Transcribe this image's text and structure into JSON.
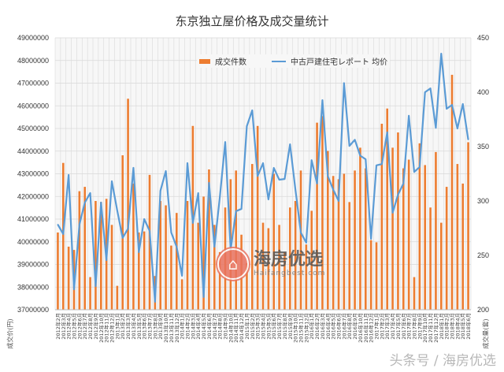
{
  "watermark": {
    "logo_name": "海房优选",
    "logo_url": "Haifangbest.com",
    "footer": "头条号 / 海房优选"
  },
  "colors": {
    "bars": "#ed7d31",
    "line": "#5b9bd5",
    "grid": "#d9d9d9"
  },
  "chart_data": {
    "type": "bar+line",
    "title": "东京独立屋价格及成交量统计",
    "ylabel_left": "成交价(円)",
    "ylabel_right": "成交量(套)",
    "ylim_left": [
      37000000,
      49000000
    ],
    "yticks_left": [
      "49000000",
      "48000000",
      "47000000",
      "46000000",
      "45000000",
      "44000000",
      "43000000",
      "42000000",
      "41000000",
      "40000000",
      "39000000",
      "38000000",
      "37000000"
    ],
    "ylim_right": [
      200,
      450
    ],
    "yticks_right": [
      "450",
      "400",
      "350",
      "300",
      "250",
      "200"
    ],
    "grid": true,
    "legend": "top-center",
    "categories": [
      "2012年2月",
      "2012年3月",
      "2012年4月",
      "2012年5月",
      "2012年6月",
      "2012年7月",
      "2012年8月",
      "2012年9月",
      "2012年10月",
      "2012年11月",
      "2012年12月",
      "2013年1月",
      "2013年2月",
      "2013年3月",
      "2013年4月",
      "2013年5月",
      "2013年6月",
      "2013年7月",
      "2013年8月",
      "2013年9月",
      "2013年10月",
      "2013年11月",
      "2013年12月",
      "2014年1月",
      "2014年2月",
      "2014年3月",
      "2014年4月",
      "2014年5月",
      "2014年6月",
      "2014年7月",
      "2014年8月",
      "2014年9月",
      "2014年10月",
      "2014年11月",
      "2014年12月",
      "2015年1月",
      "2015年2月",
      "2015年3月",
      "2015年4月",
      "2015年5月",
      "2015年6月",
      "2015年7月",
      "2015年8月",
      "2015年9月",
      "2015年10月",
      "2015年11月",
      "2015年12月",
      "2016年1月",
      "2016年2月",
      "2016年3月",
      "2016年4月",
      "2016年5月",
      "2016年6月",
      "2016年7月",
      "2016年8月",
      "2016年9月",
      "2016年10月",
      "2016年11月",
      "2016年12月",
      "2017年1月",
      "2017年2月",
      "2017年3月",
      "2017年4月",
      "2017年5月",
      "2017年6月",
      "2017年7月",
      "2017年8月",
      "2017年9月",
      "2017年10月",
      "2017年11月",
      "2017年12月",
      "2018年1月",
      "2018年2月",
      "2018年3月",
      "2018年4月",
      "2018年5月",
      "2018年6月"
    ],
    "series": [
      {
        "name": "成交件数",
        "type": "bar",
        "axis": "right",
        "values": [
          271,
          335,
          258,
          255,
          309,
          313,
          230,
          300,
          299,
          302,
          278,
          222,
          342,
          394,
          316,
          271,
          272,
          324,
          231,
          300,
          296,
          259,
          289,
          228,
          300,
          369,
          280,
          304,
          329,
          278,
          253,
          294,
          320,
          328,
          269,
          243,
          334,
          369,
          280,
          275,
          325,
          278,
          253,
          294,
          300,
          328,
          260,
          291,
          372,
          378,
          346,
          323,
          320,
          325,
          299,
          328,
          349,
          330,
          264,
          262,
          371,
          385,
          349,
          363,
          330,
          338,
          230,
          353,
          333,
          294,
          345,
          280,
          313,
          416,
          334,
          316,
          354
        ]
      },
      {
        "name": "中古戸建住宅レポート 均价",
        "type": "line",
        "axis": "left",
        "values": [
          40760000,
          40340000,
          42950000,
          37900000,
          40760000,
          41730000,
          42150000,
          38040000,
          41730000,
          39190000,
          42670000,
          41380000,
          40170000,
          40580000,
          43260000,
          39540000,
          41000000,
          40480000,
          37350000,
          42250000,
          43120000,
          40410000,
          39780000,
          38500000,
          43470000,
          40830000,
          42150000,
          37560000,
          42600000,
          39780000,
          41970000,
          44400000,
          39640000,
          41350000,
          41450000,
          45100000,
          45800000,
          42900000,
          43470000,
          41870000,
          43260000,
          42740000,
          42770000,
          44300000,
          42300000,
          40410000,
          39960000,
          43600000,
          42570000,
          46250000,
          42900000,
          42300000,
          41800000,
          47000000,
          44230000,
          44500000,
          43800000,
          43640000,
          40130000,
          43370000,
          43430000,
          44830000,
          41280000,
          42080000,
          42570000,
          45560000,
          43080000,
          43300000,
          46600000,
          46770000,
          45030000,
          48300000,
          45870000,
          46040000,
          45000000,
          46080000,
          44510000
        ]
      }
    ]
  }
}
